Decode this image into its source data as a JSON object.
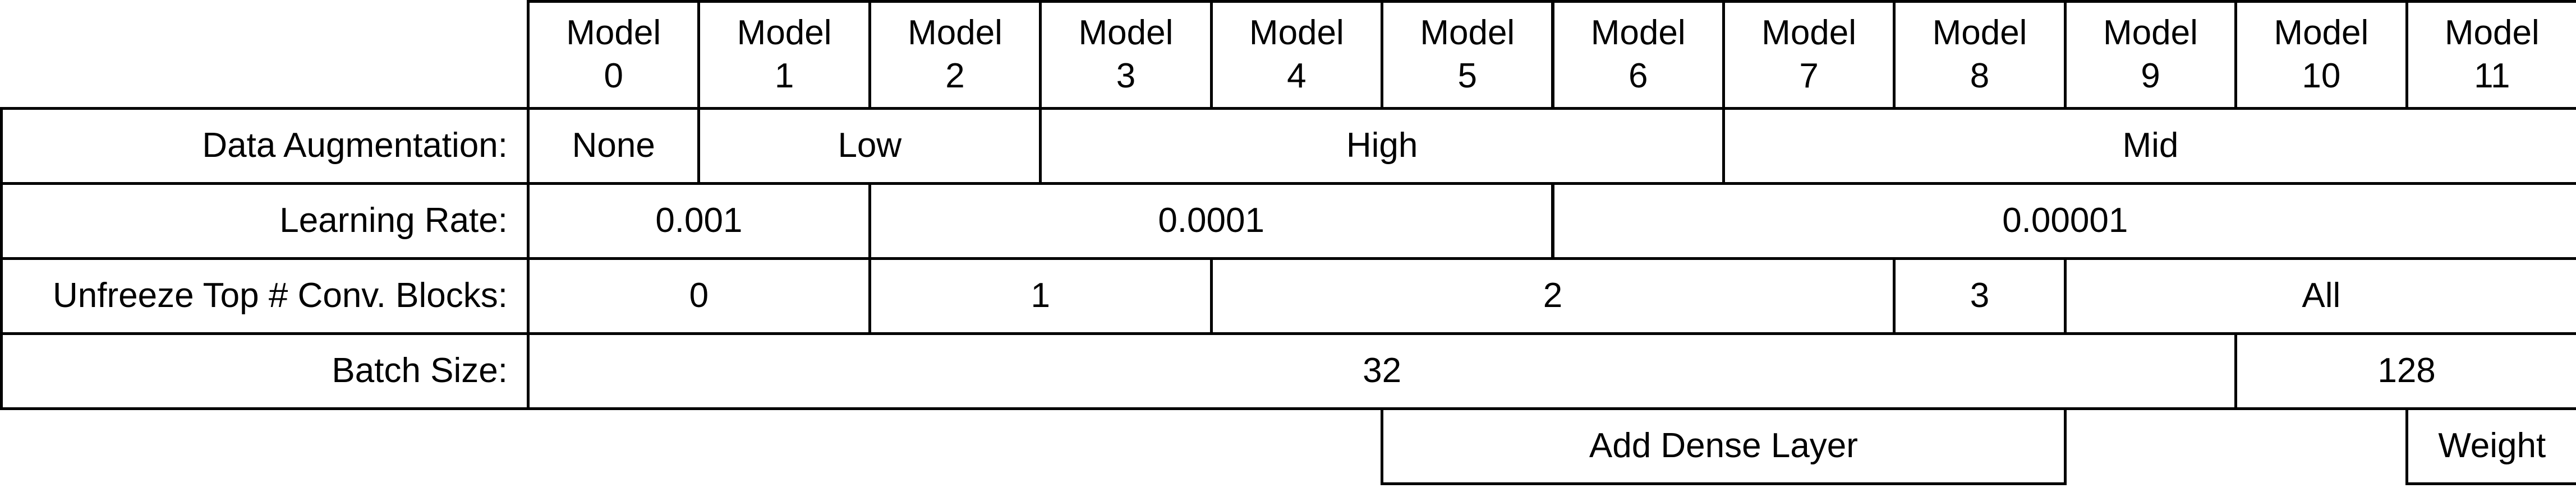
{
  "models": [
    "Model\n0",
    "Model\n1",
    "Model\n2",
    "Model\n3",
    "Model\n4",
    "Model\n5",
    "Model\n6",
    "Model\n7",
    "Model\n8",
    "Model\n9",
    "Model\n10",
    "Model\n11"
  ],
  "rows": [
    {
      "label": "Data Augmentation:",
      "segments": [
        {
          "text": "None",
          "from": 0,
          "to": 0
        },
        {
          "text": "Low",
          "from": 1,
          "to": 2
        },
        {
          "text": "High",
          "from": 3,
          "to": 6
        },
        {
          "text": "Mid",
          "from": 7,
          "to": 11
        }
      ]
    },
    {
      "label": "Learning Rate:",
      "segments": [
        {
          "text": "0.001",
          "from": 0,
          "to": 1
        },
        {
          "text": "0.0001",
          "from": 2,
          "to": 5
        },
        {
          "text": "0.00001",
          "from": 6,
          "to": 11
        }
      ]
    },
    {
      "label": "Unfreeze Top # Conv. Blocks:",
      "segments": [
        {
          "text": "0",
          "from": 0,
          "to": 1
        },
        {
          "text": "1",
          "from": 2,
          "to": 3
        },
        {
          "text": "2",
          "from": 4,
          "to": 7
        },
        {
          "text": "3",
          "from": 8,
          "to": 8
        },
        {
          "text": "All",
          "from": 9,
          "to": 11
        }
      ]
    },
    {
      "label": "Batch Size:",
      "segments": [
        {
          "text": "32",
          "from": 0,
          "to": 9
        },
        {
          "text": "128",
          "from": 10,
          "to": 11
        }
      ]
    },
    {
      "label": "",
      "segments": [
        {
          "text": "Add Dense Layer",
          "from": 5,
          "to": 8
        },
        {
          "text": "Weight",
          "from": 11,
          "to": 11
        }
      ]
    }
  ]
}
